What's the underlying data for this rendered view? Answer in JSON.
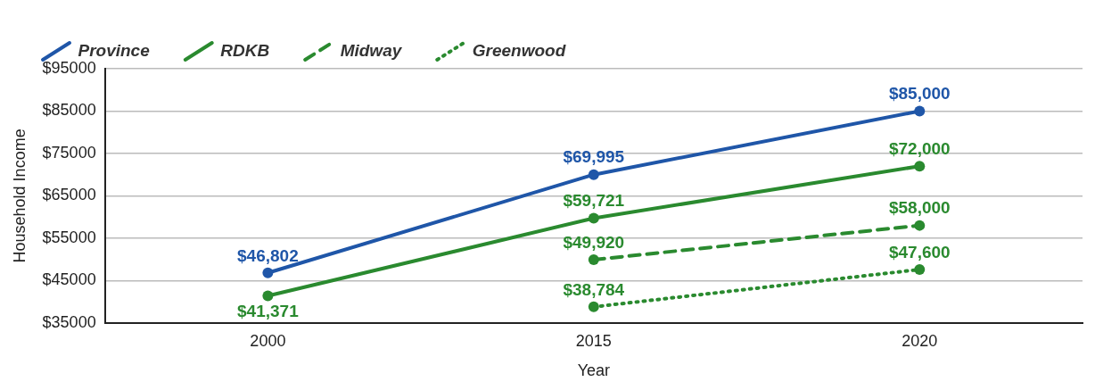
{
  "chart_data": {
    "type": "line",
    "xlabel": "Year",
    "ylabel": "Household Income",
    "categories": [
      "2000",
      "2015",
      "2020"
    ],
    "series": [
      {
        "name": "Province",
        "color": "#1f56a8",
        "values": [
          46802,
          69995,
          85000
        ],
        "value_labels": [
          "$46,802",
          "$69,995",
          "$85,000"
        ],
        "line_style": "solid"
      },
      {
        "name": "RDKB",
        "color": "#2a8a2f",
        "values": [
          41371,
          59721,
          72000
        ],
        "value_labels": [
          "$41,371",
          "$59,721",
          "$72,000"
        ],
        "line_style": "solid"
      },
      {
        "name": "Midway",
        "color": "#2a8a2f",
        "values": [
          null,
          49920,
          58000
        ],
        "value_labels": [
          null,
          "$49,920",
          "$58,000"
        ],
        "line_style": "dashed"
      },
      {
        "name": "Greenwood",
        "color": "#2a8a2f",
        "values": [
          null,
          38784,
          47600
        ],
        "value_labels": [
          null,
          "$38,784",
          "$47,600"
        ],
        "line_style": "dotted"
      }
    ],
    "ylim": [
      35000,
      95000
    ],
    "yticks": [
      {
        "value": 35000,
        "label": "$35000"
      },
      {
        "value": 45000,
        "label": "$45000"
      },
      {
        "value": 55000,
        "label": "$55000"
      },
      {
        "value": 65000,
        "label": "$65000"
      },
      {
        "value": 75000,
        "label": "$75000"
      },
      {
        "value": 85000,
        "label": "$85000"
      },
      {
        "value": 95000,
        "label": "$95000"
      }
    ],
    "grid": "y",
    "legend": "top left",
    "marker": "circle"
  }
}
